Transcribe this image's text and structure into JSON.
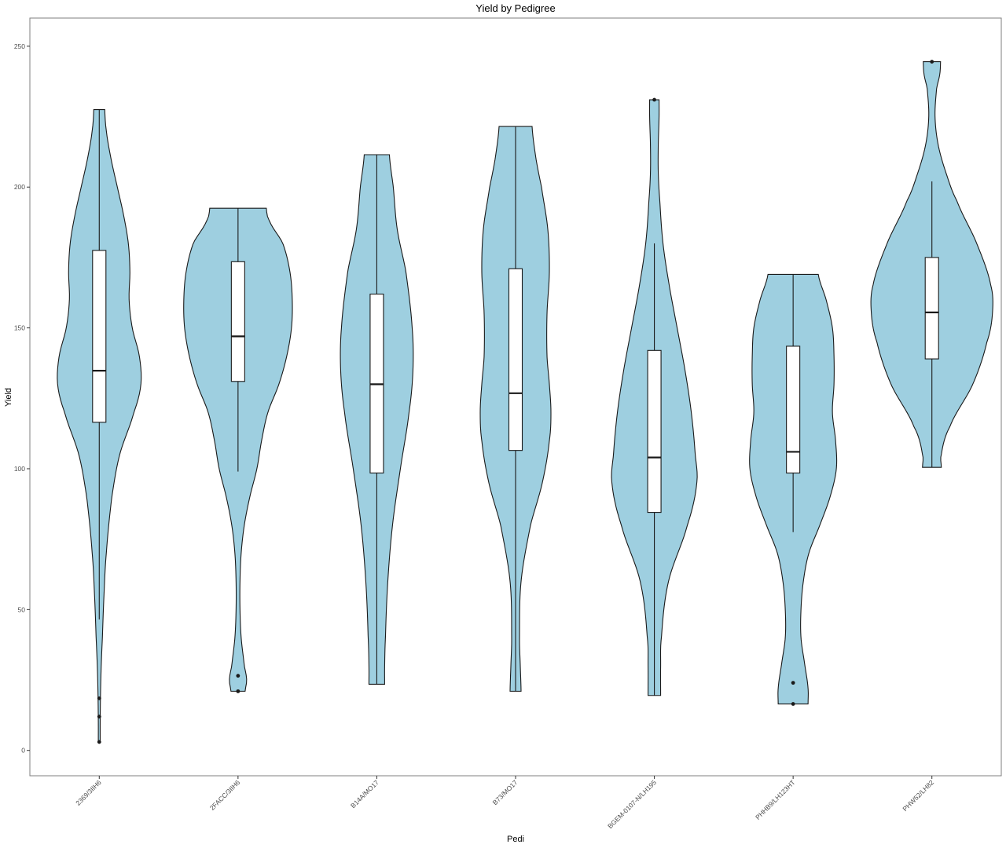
{
  "chart_data": {
    "type": "violin",
    "title": "Yield by Pedigree",
    "xlabel": "Pedi",
    "ylabel": "Yield",
    "ylim": [
      -9,
      260
    ],
    "yticks": [
      0,
      50,
      100,
      150,
      200,
      250
    ],
    "grid": false,
    "fill_color": "#9ecfe0",
    "categories": [
      "2369/3IIH6",
      "2FACC/3IIH6",
      "B14A/MO17",
      "B73/MO17",
      "BGEM-0107-N/LH195",
      "PHHB9/LH123HT",
      "PHW52/LH82"
    ],
    "series": [
      {
        "category": "2369/3IIH6",
        "min": 3,
        "max": 227.5,
        "q1": 116.5,
        "median": 134.8,
        "q3": 177.5,
        "whisker_low": 46.5,
        "whisker_high": 227.5,
        "outliers": [
          3,
          12,
          18.5
        ],
        "density": [
          [
            3,
            1.2
          ],
          [
            10,
            1.2
          ],
          [
            20,
            1.6
          ],
          [
            30,
            2.5
          ],
          [
            40,
            4
          ],
          [
            55,
            6
          ],
          [
            70,
            9
          ],
          [
            90,
            16
          ],
          [
            105,
            26
          ],
          [
            120,
            44
          ],
          [
            130,
            53
          ],
          [
            140,
            51
          ],
          [
            150,
            42
          ],
          [
            160,
            38
          ],
          [
            170,
            39
          ],
          [
            180,
            37
          ],
          [
            190,
            31
          ],
          [
            200,
            23
          ],
          [
            210,
            15
          ],
          [
            220,
            9
          ],
          [
            227.5,
            7
          ]
        ]
      },
      {
        "category": "2FACC/3IIH6",
        "min": 21,
        "max": 192.5,
        "q1": 131,
        "median": 147,
        "q3": 173.5,
        "whisker_low": 99,
        "whisker_high": 192.5,
        "outliers": [
          21,
          26.5
        ],
        "density": [
          [
            21,
            9
          ],
          [
            25,
            11
          ],
          [
            30,
            8
          ],
          [
            40,
            4
          ],
          [
            50,
            2.5
          ],
          [
            60,
            2.5
          ],
          [
            70,
            4
          ],
          [
            80,
            8
          ],
          [
            90,
            15
          ],
          [
            100,
            24
          ],
          [
            110,
            30
          ],
          [
            120,
            38
          ],
          [
            130,
            52
          ],
          [
            140,
            62
          ],
          [
            150,
            68
          ],
          [
            160,
            69
          ],
          [
            170,
            66
          ],
          [
            180,
            57
          ],
          [
            188,
            40
          ],
          [
            192.5,
            36
          ]
        ]
      },
      {
        "category": "B14A/MO17",
        "min": 23.5,
        "max": 211.5,
        "q1": 98.5,
        "median": 130,
        "q3": 162,
        "whisker_low": 23.5,
        "whisker_high": 211.5,
        "outliers": [],
        "density": [
          [
            23.5,
            10
          ],
          [
            30,
            10
          ],
          [
            40,
            11
          ],
          [
            60,
            14
          ],
          [
            80,
            20
          ],
          [
            100,
            30
          ],
          [
            120,
            41
          ],
          [
            135,
            46
          ],
          [
            150,
            45
          ],
          [
            170,
            37
          ],
          [
            185,
            26
          ],
          [
            200,
            21
          ],
          [
            211.5,
            16
          ]
        ]
      },
      {
        "category": "B73/MO17",
        "min": 21,
        "max": 221.5,
        "q1": 106.5,
        "median": 126.8,
        "q3": 171,
        "whisker_low": 21,
        "whisker_high": 221.5,
        "outliers": [],
        "density": [
          [
            21,
            7
          ],
          [
            30,
            6
          ],
          [
            40,
            5
          ],
          [
            60,
            7
          ],
          [
            80,
            19
          ],
          [
            95,
            34
          ],
          [
            110,
            43
          ],
          [
            120,
            45
          ],
          [
            130,
            43
          ],
          [
            140,
            40
          ],
          [
            155,
            40
          ],
          [
            170,
            43
          ],
          [
            185,
            41
          ],
          [
            200,
            33
          ],
          [
            210,
            26
          ],
          [
            221.5,
            21
          ]
        ]
      },
      {
        "category": "BGEM-0107-N/LH195",
        "min": 19.5,
        "max": 231,
        "q1": 84.5,
        "median": 104,
        "q3": 142,
        "whisker_low": 19.5,
        "whisker_high": 180,
        "outliers": [
          231
        ],
        "density": [
          [
            19.5,
            8
          ],
          [
            30,
            8
          ],
          [
            40,
            9
          ],
          [
            60,
            18
          ],
          [
            80,
            42
          ],
          [
            95,
            54
          ],
          [
            105,
            52
          ],
          [
            120,
            47
          ],
          [
            135,
            39
          ],
          [
            150,
            29
          ],
          [
            165,
            19
          ],
          [
            180,
            11
          ],
          [
            195,
            7
          ],
          [
            205,
            5
          ],
          [
            215,
            5
          ],
          [
            225,
            6
          ],
          [
            231,
            6
          ]
        ]
      },
      {
        "category": "PHHB9/LH123HT",
        "min": 16.5,
        "max": 169,
        "q1": 98.5,
        "median": 106,
        "q3": 143.5,
        "whisker_low": 77.5,
        "whisker_high": 169,
        "outliers": [
          16.5,
          24
        ],
        "density": [
          [
            16.5,
            19
          ],
          [
            22,
            19
          ],
          [
            30,
            15
          ],
          [
            40,
            10
          ],
          [
            50,
            10
          ],
          [
            60,
            13
          ],
          [
            70,
            20
          ],
          [
            80,
            34
          ],
          [
            90,
            47
          ],
          [
            100,
            55
          ],
          [
            110,
            54
          ],
          [
            120,
            50
          ],
          [
            130,
            52
          ],
          [
            140,
            52
          ],
          [
            150,
            50
          ],
          [
            160,
            42
          ],
          [
            169,
            32
          ]
        ]
      },
      {
        "category": "PHW52/LH82",
        "min": 100.5,
        "max": 244.5,
        "q1": 139,
        "median": 155.5,
        "q3": 175,
        "whisker_low": 100.5,
        "whisker_high": 202,
        "outliers": [
          244.5
        ],
        "density": [
          [
            100.5,
            12
          ],
          [
            105,
            12
          ],
          [
            115,
            23
          ],
          [
            130,
            52
          ],
          [
            145,
            70
          ],
          [
            155,
            77
          ],
          [
            165,
            75
          ],
          [
            180,
            57
          ],
          [
            195,
            32
          ],
          [
            205,
            18
          ],
          [
            215,
            8
          ],
          [
            225,
            4
          ],
          [
            235,
            6
          ],
          [
            240,
            10
          ],
          [
            244.5,
            11
          ]
        ]
      }
    ]
  }
}
